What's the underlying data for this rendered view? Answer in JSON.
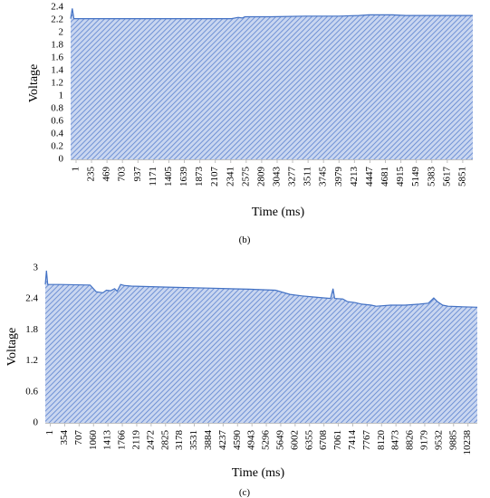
{
  "chart_data": [
    {
      "type": "area",
      "panel_label": "(b)",
      "xlabel": "Time (ms)",
      "ylabel": "Voltage",
      "ylim": [
        0,
        2.4
      ],
      "y_ticks": [
        "0",
        "0.2",
        "0.4",
        "0.6",
        "0.8",
        "1",
        "1.2",
        "1.4",
        "1.6",
        "1.8",
        "2",
        "2.2",
        "2.4"
      ],
      "x_ticks": [
        "1",
        "235",
        "469",
        "703",
        "937",
        "1171",
        "1405",
        "1639",
        "1873",
        "2107",
        "2341",
        "2575",
        "2809",
        "3043",
        "3277",
        "3511",
        "3745",
        "3979",
        "4213",
        "4447",
        "4681",
        "4915",
        "5149",
        "5383",
        "5617",
        "5851"
      ],
      "xlim": [
        1,
        6000
      ],
      "grid": false,
      "color": "#4472c4",
      "series": [
        {
          "x": [
            1,
            25,
            50,
            235,
            1000,
            2000,
            2400,
            2500,
            2560,
            2600,
            3000,
            3500,
            4000,
            4300,
            4450,
            4500,
            4800,
            5000,
            5500,
            6000
          ],
          "values": [
            2.22,
            2.38,
            2.22,
            2.22,
            2.22,
            2.22,
            2.22,
            2.24,
            2.23,
            2.25,
            2.25,
            2.26,
            2.26,
            2.27,
            2.28,
            2.28,
            2.28,
            2.27,
            2.27,
            2.27
          ]
        }
      ]
    },
    {
      "type": "area",
      "panel_label": "(c)",
      "xlabel": "Time (ms)",
      "ylabel": "Voltage",
      "ylim": [
        0,
        3
      ],
      "y_ticks": [
        "0",
        "0.6",
        "1.2",
        "1.8",
        "2.4",
        "3"
      ],
      "x_ticks": [
        "1",
        "354",
        "707",
        "1060",
        "1413",
        "1766",
        "2119",
        "2472",
        "2825",
        "3178",
        "3531",
        "3884",
        "4237",
        "4590",
        "4943",
        "5296",
        "5649",
        "6002",
        "6355",
        "6708",
        "7061",
        "7414",
        "7767",
        "8120",
        "8473",
        "8826",
        "9179",
        "9532",
        "9885",
        "10238"
      ],
      "xlim": [
        1,
        10600
      ],
      "grid": false,
      "color": "#4472c4",
      "series": [
        {
          "x": [
            1,
            30,
            60,
            354,
            1100,
            1250,
            1413,
            1500,
            1600,
            1700,
            1766,
            1850,
            1950,
            2119,
            3000,
            4000,
            5000,
            5649,
            6002,
            6300,
            6708,
            7000,
            7061,
            7100,
            7300,
            7414,
            7600,
            7767,
            8000,
            8120,
            8473,
            8826,
            9179,
            9400,
            9532,
            9620,
            9750,
            9885,
            10238,
            10600
          ],
          "values": [
            2.68,
            2.95,
            2.68,
            2.68,
            2.67,
            2.54,
            2.52,
            2.57,
            2.56,
            2.6,
            2.55,
            2.68,
            2.66,
            2.65,
            2.63,
            2.61,
            2.59,
            2.57,
            2.49,
            2.46,
            2.43,
            2.41,
            2.6,
            2.41,
            2.4,
            2.35,
            2.33,
            2.3,
            2.28,
            2.26,
            2.28,
            2.28,
            2.3,
            2.32,
            2.42,
            2.35,
            2.28,
            2.26,
            2.25,
            2.24
          ]
        }
      ]
    }
  ]
}
